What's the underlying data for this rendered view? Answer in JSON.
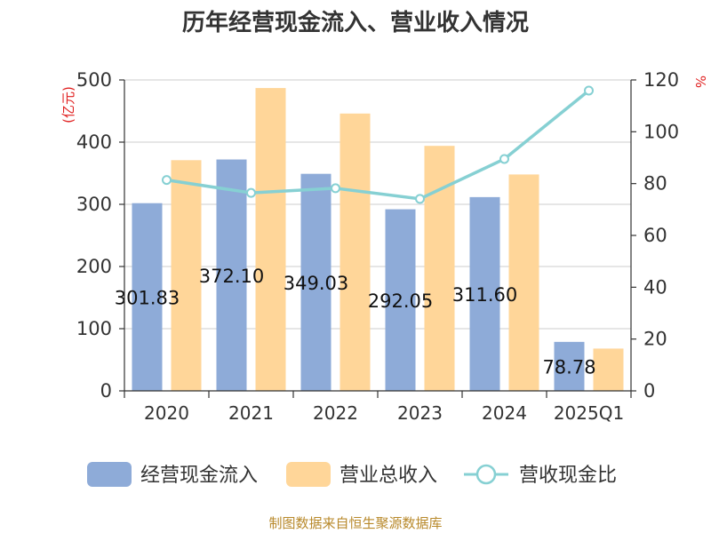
{
  "chart_data": {
    "type": "bar",
    "title": "历年经营现金流入、营业收入情况",
    "y_left_unit": "(亿元)",
    "y_right_unit": "%",
    "categories": [
      "2020",
      "2021",
      "2022",
      "2023",
      "2024",
      "2025Q1"
    ],
    "y_left_range": [
      0,
      500
    ],
    "y_left_ticks": [
      "0",
      "100",
      "200",
      "300",
      "400",
      "500"
    ],
    "y_right_range": [
      0,
      120
    ],
    "y_right_ticks": [
      "0",
      "20",
      "40",
      "60",
      "80",
      "100",
      "120"
    ],
    "grid": true,
    "legend_position": "bottom",
    "series": [
      {
        "name": "经营现金流入",
        "type": "bar",
        "axis": "left",
        "color": "#8eabd8",
        "values": [
          301.83,
          372.1,
          349.03,
          292.05,
          311.6,
          78.78
        ],
        "labels": [
          "301.83",
          "372.10",
          "349.03",
          "292.05",
          "311.60",
          "78.78"
        ]
      },
      {
        "name": "营业总收入",
        "type": "bar",
        "axis": "left",
        "color": "#ffd699",
        "values": [
          371,
          487,
          446,
          394,
          348,
          68
        ]
      },
      {
        "name": "营收现金比",
        "type": "line",
        "axis": "right",
        "color": "#86d0d3",
        "values": [
          81.4,
          76.4,
          78.2,
          74.1,
          89.5,
          115.9
        ]
      }
    ]
  },
  "footer": {
    "source": "制图数据来自恒生聚源数据库"
  }
}
